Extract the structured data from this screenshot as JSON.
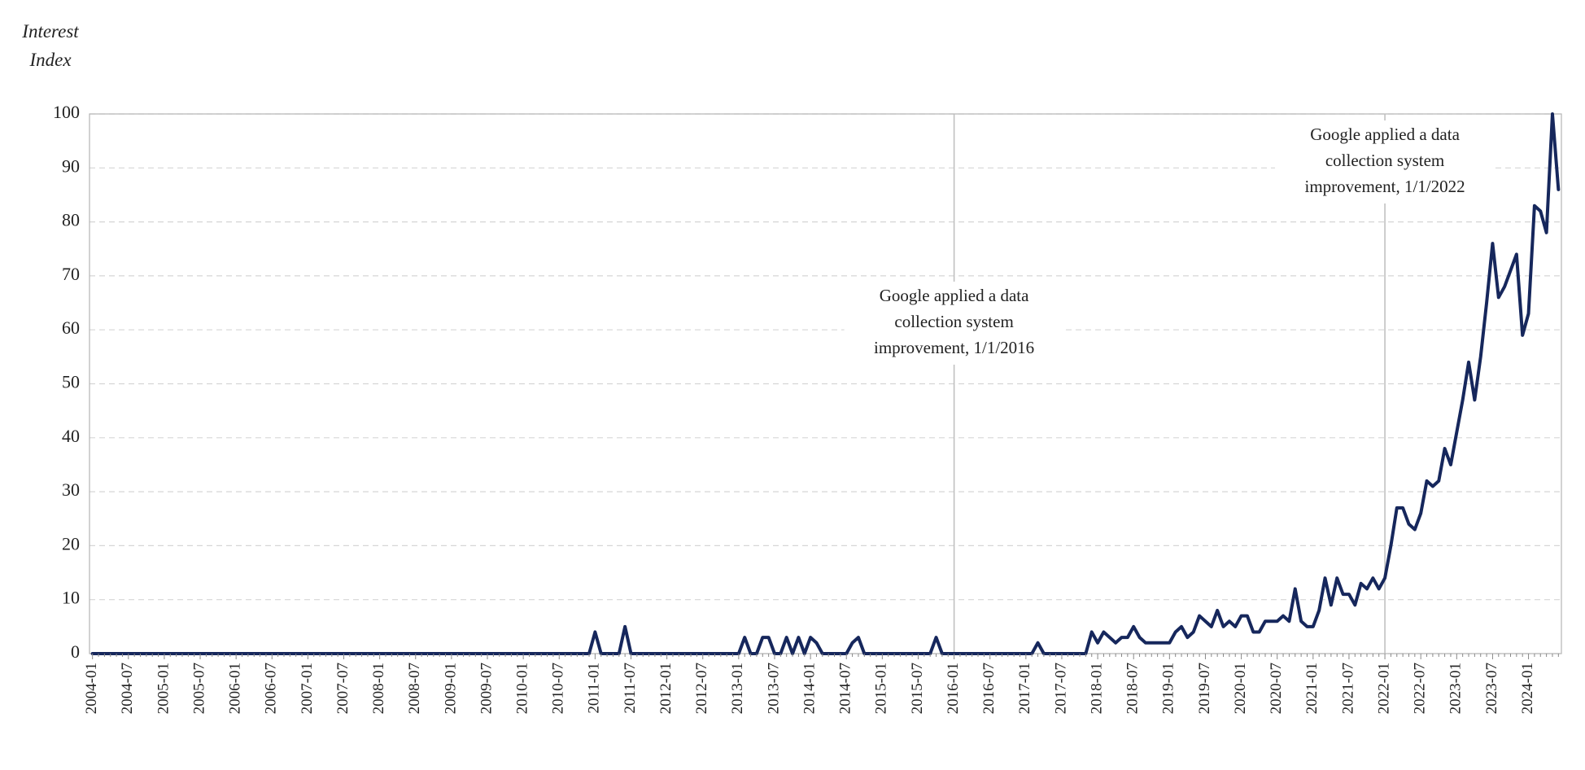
{
  "chart_data": {
    "type": "line",
    "ylabel": [
      "Interest",
      "Index"
    ],
    "color": "#16275c",
    "grid": true,
    "ylim": [
      0,
      100
    ],
    "yticks": [
      0,
      10,
      20,
      30,
      40,
      50,
      60,
      70,
      80,
      90,
      100
    ],
    "categories": [
      "2004-01",
      null,
      null,
      null,
      null,
      null,
      "2004-07",
      null,
      null,
      null,
      null,
      null,
      "2005-01",
      null,
      null,
      null,
      null,
      null,
      "2005-07",
      null,
      null,
      null,
      null,
      null,
      "2006-01",
      null,
      null,
      null,
      null,
      null,
      "2006-07",
      null,
      null,
      null,
      null,
      null,
      "2007-01",
      null,
      null,
      null,
      null,
      null,
      "2007-07",
      null,
      null,
      null,
      null,
      null,
      "2008-01",
      null,
      null,
      null,
      null,
      null,
      "2008-07",
      null,
      null,
      null,
      null,
      null,
      "2009-01",
      null,
      null,
      null,
      null,
      null,
      "2009-07",
      null,
      null,
      null,
      null,
      null,
      "2010-01",
      null,
      null,
      null,
      null,
      null,
      "2010-07",
      null,
      null,
      null,
      null,
      null,
      "2011-01",
      null,
      null,
      null,
      null,
      null,
      "2011-07",
      null,
      null,
      null,
      null,
      null,
      "2012-01",
      null,
      null,
      null,
      null,
      null,
      "2012-07",
      null,
      null,
      null,
      null,
      null,
      "2013-01",
      null,
      null,
      null,
      null,
      null,
      "2013-07",
      null,
      null,
      null,
      null,
      null,
      "2014-01",
      null,
      null,
      null,
      null,
      null,
      "2014-07",
      null,
      null,
      null,
      null,
      null,
      "2015-01",
      null,
      null,
      null,
      null,
      null,
      "2015-07",
      null,
      null,
      null,
      null,
      null,
      "2016-01",
      null,
      null,
      null,
      null,
      null,
      "2016-07",
      null,
      null,
      null,
      null,
      null,
      "2017-01",
      null,
      null,
      null,
      null,
      null,
      "2017-07",
      null,
      null,
      null,
      null,
      null,
      "2018-01",
      null,
      null,
      null,
      null,
      null,
      "2018-07",
      null,
      null,
      null,
      null,
      null,
      "2019-01",
      null,
      null,
      null,
      null,
      null,
      "2019-07",
      null,
      null,
      null,
      null,
      null,
      "2020-01",
      null,
      null,
      null,
      null,
      null,
      "2020-07",
      null,
      null,
      null,
      null,
      null,
      "2021-01",
      null,
      null,
      null,
      null,
      null,
      "2021-07",
      null,
      null,
      null,
      null,
      null,
      "2022-01",
      null,
      null,
      null,
      null,
      null,
      "2022-07",
      null,
      null,
      null,
      null,
      null,
      "2023-01",
      null,
      null,
      null,
      null,
      null,
      "2023-07",
      null,
      null,
      null,
      null,
      null,
      "2024-01",
      null,
      null,
      null,
      null,
      null
    ],
    "values": [
      0,
      0,
      0,
      0,
      0,
      0,
      0,
      0,
      0,
      0,
      0,
      0,
      0,
      0,
      0,
      0,
      0,
      0,
      0,
      0,
      0,
      0,
      0,
      0,
      0,
      0,
      0,
      0,
      0,
      0,
      0,
      0,
      0,
      0,
      0,
      0,
      0,
      0,
      0,
      0,
      0,
      0,
      0,
      0,
      0,
      0,
      0,
      0,
      0,
      0,
      0,
      0,
      0,
      0,
      0,
      0,
      0,
      0,
      0,
      0,
      0,
      0,
      0,
      0,
      0,
      0,
      0,
      0,
      0,
      0,
      0,
      0,
      0,
      0,
      0,
      0,
      0,
      0,
      0,
      0,
      0,
      0,
      0,
      0,
      4,
      0,
      0,
      0,
      0,
      5,
      0,
      0,
      0,
      0,
      0,
      0,
      0,
      0,
      0,
      0,
      0,
      0,
      0,
      0,
      0,
      0,
      0,
      0,
      0,
      3,
      0,
      0,
      3,
      3,
      0,
      0,
      3,
      0,
      3,
      0,
      3,
      2,
      0,
      0,
      0,
      0,
      0,
      2,
      3,
      0,
      0,
      0,
      0,
      0,
      0,
      0,
      0,
      0,
      0,
      0,
      0,
      3,
      0,
      0,
      0,
      0,
      0,
      0,
      0,
      0,
      0,
      0,
      0,
      0,
      0,
      0,
      0,
      0,
      2,
      0,
      0,
      0,
      0,
      0,
      0,
      0,
      0,
      4,
      2,
      4,
      3,
      2,
      3,
      3,
      5,
      3,
      2,
      2,
      2,
      2,
      2,
      4,
      5,
      3,
      4,
      7,
      6,
      5,
      8,
      5,
      6,
      5,
      7,
      7,
      4,
      4,
      6,
      6,
      6,
      7,
      6,
      12,
      6,
      5,
      5,
      8,
      14,
      9,
      14,
      11,
      11,
      9,
      13,
      12,
      14,
      12,
      14,
      20,
      27,
      27,
      24,
      23,
      26,
      32,
      31,
      32,
      38,
      35,
      41,
      47,
      54,
      47,
      55,
      65,
      76,
      66,
      68,
      71,
      74,
      59,
      63,
      83,
      82,
      78,
      100,
      86
    ],
    "annotations": [
      {
        "x": "2016-01",
        "lines": [
          "Google applied a data",
          "collection system",
          "improvement, 1/1/2016"
        ]
      },
      {
        "x": "2022-01",
        "lines": [
          "Google applied a data",
          "collection system",
          "improvement, 1/1/2022"
        ]
      }
    ]
  }
}
